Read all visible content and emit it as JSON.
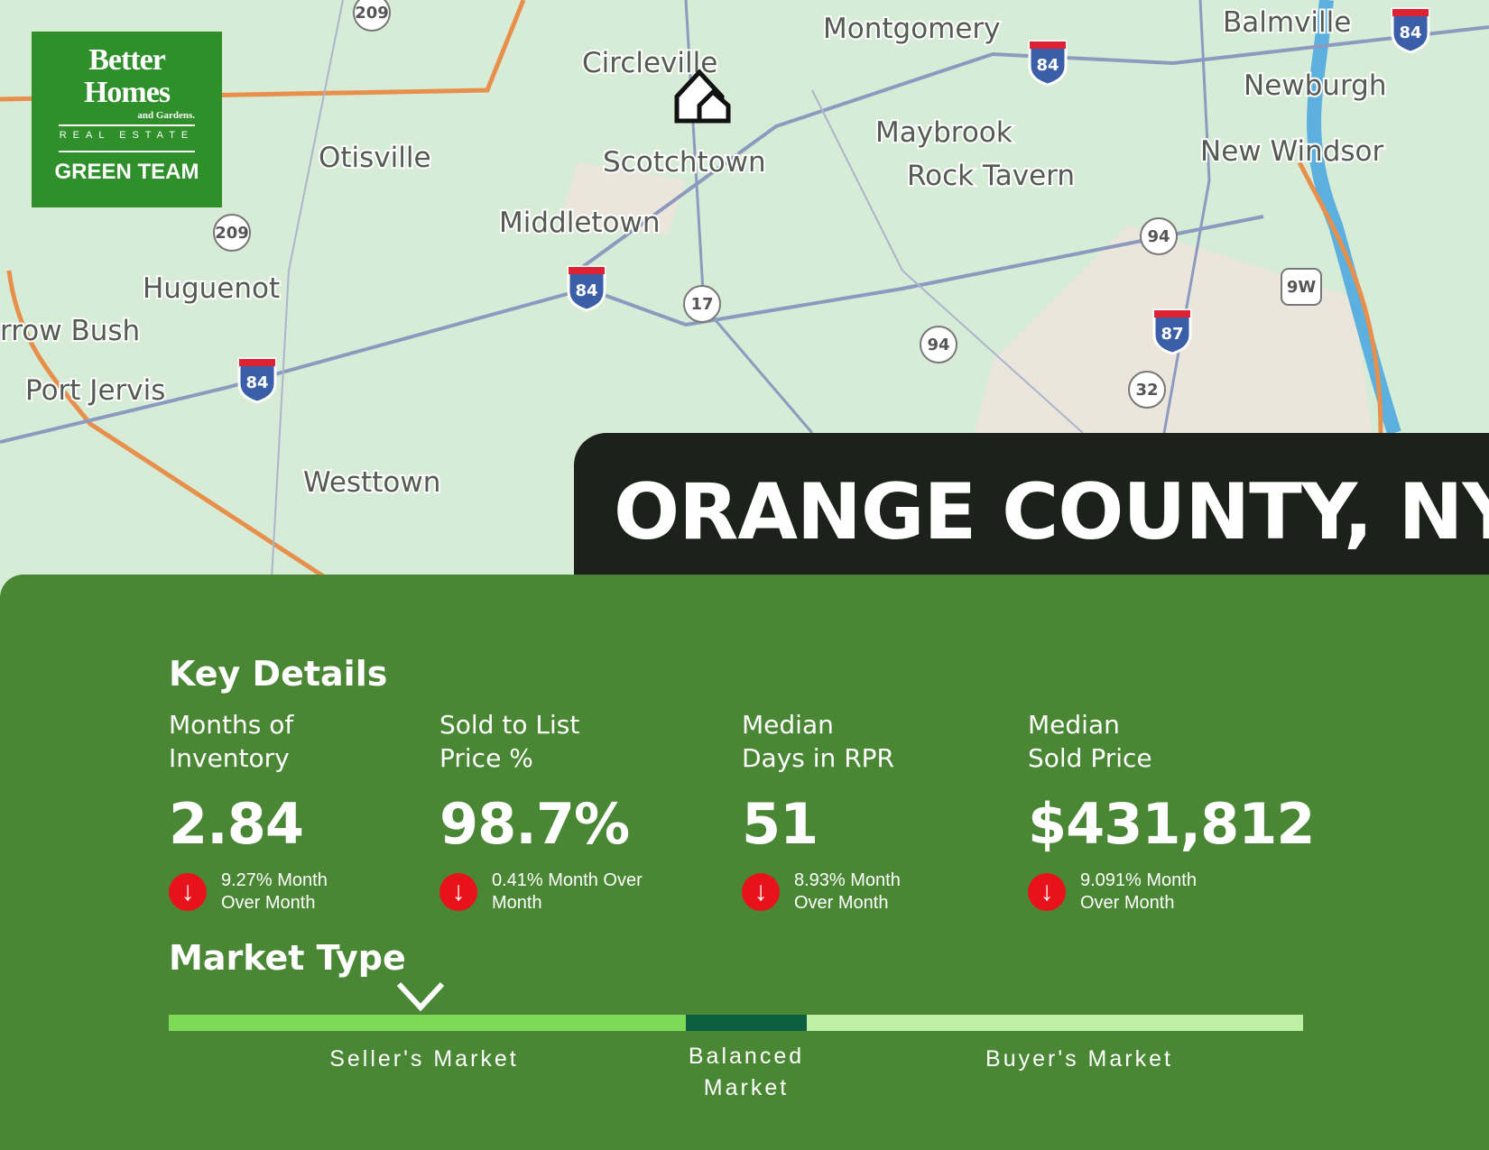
{
  "logo": {
    "line1": "Better Homes",
    "line2": "and Gardens.",
    "line3": "REAL ESTATE",
    "team": "GREEN TEAM"
  },
  "map": {
    "towns": [
      "Circleville",
      "Montgomery",
      "Balmville",
      "Newburgh",
      "Maybrook",
      "New Windsor",
      "Rock Tavern",
      "Otisville",
      "Scotchtown",
      "Middletown",
      "Huguenot",
      "rrow Bush",
      "Port Jervis",
      "Westtown"
    ],
    "shields": [
      "209",
      "209",
      "84",
      "84",
      "84",
      "84",
      "17",
      "94",
      "94",
      "9W",
      "87",
      "32"
    ]
  },
  "title": "ORANGE COUNTY, NY",
  "key_details": {
    "heading": "Key Details",
    "metrics": [
      {
        "label": "Months of\nInventory",
        "value": "2.84",
        "change": "9.27% Month\nOver Month",
        "direction": "down"
      },
      {
        "label": "Sold to List\nPrice %",
        "value": "98.7%",
        "change": "0.41% Month Over\nMonth",
        "direction": "down"
      },
      {
        "label": "Median\nDays in RPR",
        "value": "51",
        "change": "8.93% Month\nOver Month",
        "direction": "down"
      },
      {
        "label": "Median\nSold Price",
        "value": "$431,812",
        "change": "9.091% Month\nOver Month",
        "direction": "down"
      }
    ]
  },
  "market_type": {
    "heading": "Market Type",
    "current": "Seller's Market",
    "segments": [
      {
        "label": "Seller's Market",
        "color": "#7ed957"
      },
      {
        "label": "Balanced\nMarket",
        "color": "#0b5e3f"
      },
      {
        "label": "Buyer's Market",
        "color": "#bfeea5"
      }
    ]
  }
}
